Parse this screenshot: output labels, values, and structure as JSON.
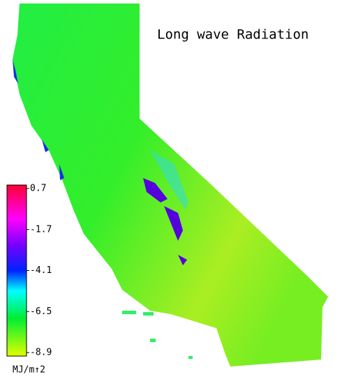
{
  "title": "Long wave Radiation",
  "colorbar": {
    "ticks": [
      0.7,
      -1.7,
      -4.1,
      -6.5,
      -8.9
    ],
    "unit": "MJ/m↑2"
  }
}
